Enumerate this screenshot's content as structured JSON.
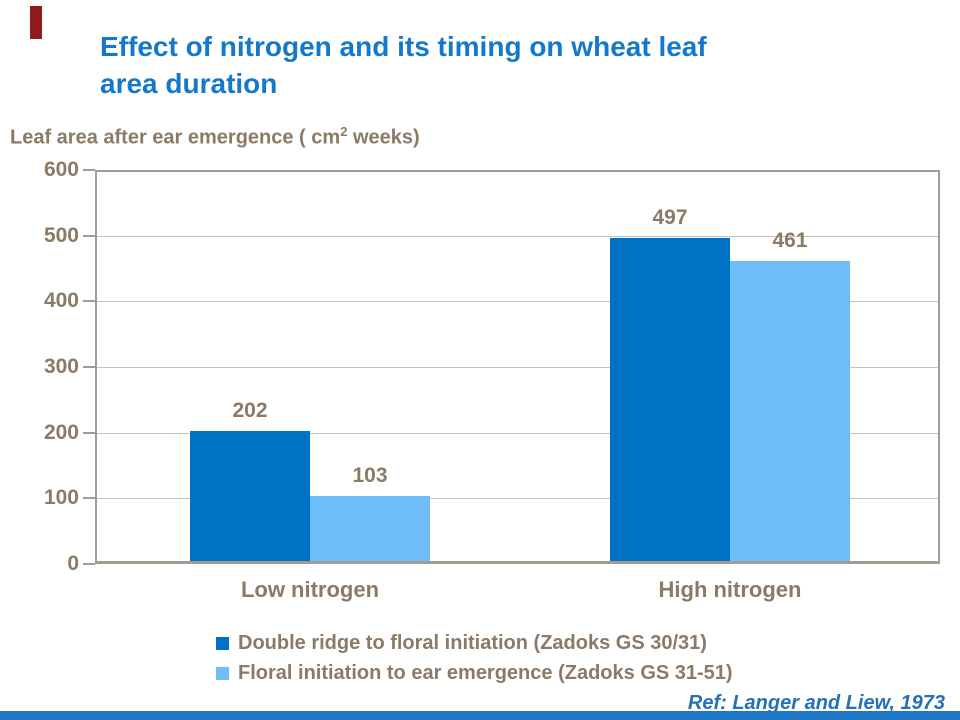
{
  "slide": {
    "title_line1": "Effect of nitrogen and its timing on wheat leaf",
    "title_line2": "area duration",
    "axis_title": {
      "pre": "Leaf area after ear emergence ( cm",
      "sup": "2",
      "post": " weeks)"
    },
    "ref_note": "Ref: Langer and Liew, 1973",
    "colors": {
      "title_blue": "#1478CC",
      "text_taupe": "#8A7A66",
      "accent_red": "#8E1B17",
      "bottom_bar_blue": "#1F76C4",
      "gridline_gray": "#C8C2BA",
      "axis_border": "#A59C91"
    }
  },
  "chart_data": {
    "type": "bar",
    "title": "Effect of nitrogen and its timing on wheat leaf area duration",
    "ylabel": "Leaf area after ear emergence ( cm2 weeks)",
    "xlabel": "",
    "categories": [
      "Low nitrogen",
      "High nitrogen"
    ],
    "series": [
      {
        "name": "Double ridge to floral initiation (Zadoks GS 30/31)",
        "color": "#0072C6",
        "values": [
          202,
          497
        ]
      },
      {
        "name": "Floral initiation to ear emergence (Zadoks GS 31-51)",
        "color": "#6EBCF8",
        "values": [
          103,
          461
        ]
      }
    ],
    "ylim": [
      0,
      600
    ],
    "yticks": [
      0,
      100,
      200,
      300,
      400,
      500,
      600
    ],
    "grid": true,
    "legend_position": "bottom"
  }
}
